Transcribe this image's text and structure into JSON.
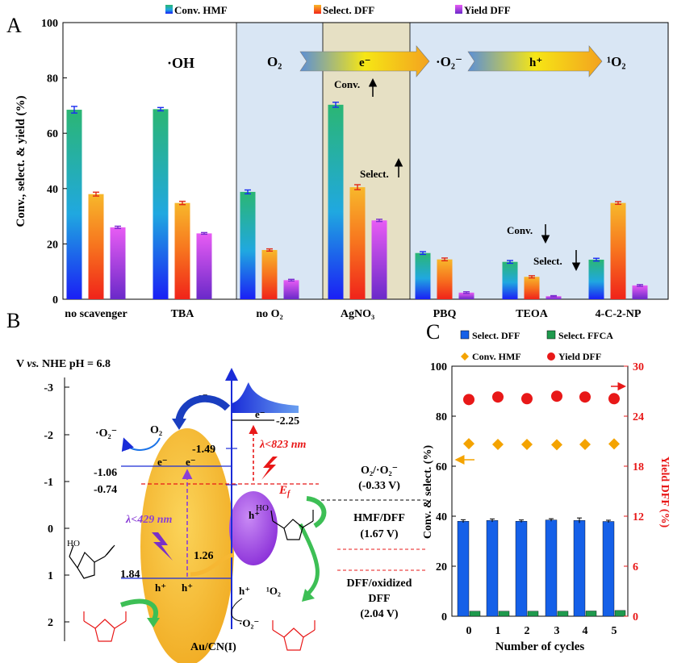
{
  "panels": {
    "A": {
      "label": "A"
    },
    "B": {
      "label": "B"
    },
    "C": {
      "label": "C"
    }
  },
  "chart_data": [
    {
      "panel": "A",
      "type": "bar",
      "ylabel": "Conv., select. & yield (%)",
      "ylim": [
        0,
        100
      ],
      "yticks": [
        0,
        20,
        40,
        60,
        80,
        100
      ],
      "categories": [
        "no scavenger",
        "TBA",
        "no O₂",
        "AgNO₃",
        "PBQ",
        "TEOA",
        "4-C-2-NP"
      ],
      "series": [
        {
          "name": "Conv. HMF",
          "values": [
            68.5,
            68.7,
            38.8,
            70.3,
            16.7,
            13.5,
            14.3
          ],
          "errors": [
            1.2,
            0.6,
            0.7,
            0.9,
            0.5,
            0.5,
            0.5
          ]
        },
        {
          "name": "Select. DFF",
          "values": [
            38.0,
            34.8,
            17.8,
            40.5,
            14.4,
            8.1,
            34.8
          ],
          "errors": [
            0.7,
            0.6,
            0.4,
            0.9,
            0.5,
            0.4,
            0.5
          ]
        },
        {
          "name": "Yield DFF",
          "values": [
            26.0,
            23.8,
            6.9,
            28.5,
            2.4,
            1.1,
            5.0
          ],
          "errors": [
            0.4,
            0.3,
            0.3,
            0.4,
            0.3,
            0.2,
            0.3
          ]
        }
      ],
      "legend_position": "top",
      "colors": {
        "conv_bar_top": "#2bb673",
        "conv_bar_bottom": "#1a2cf0",
        "sel_bar_top": "#f7b32b",
        "sel_bar_bottom": "#f03a17",
        "yield_bar_top": "#e05cf2",
        "yield_bar_bottom": "#7b2bd0",
        "bg_blue": "#d9e6f4",
        "bg_tan": "#e6e0c4",
        "error_conv": "#1a2cf0",
        "error_sel": "#e02a17",
        "error_yield": "#7b2bd0"
      },
      "annotations": {
        "oh": "·OH",
        "o2": "O₂",
        "electron": "e⁻",
        "superoxide": "·O₂⁻",
        "hole": "h⁺",
        "singlet": "¹O₂",
        "conv_up": "Conv.",
        "select_up": "Select.",
        "conv_down": "Conv.",
        "select_down": "Select."
      }
    },
    {
      "panel": "C",
      "type": "bar",
      "xlabel": "Number of cycles",
      "ylabel": "Conv. & select. (%)",
      "ylabel_right": "Yield DFF (%)",
      "ylim": [
        0,
        100
      ],
      "ylim_right": [
        0,
        30
      ],
      "yticks": [
        0,
        20,
        40,
        60,
        80,
        100
      ],
      "yticks_right": [
        0,
        6,
        12,
        18,
        24,
        30
      ],
      "categories": [
        "0",
        "1",
        "2",
        "3",
        "4",
        "5"
      ],
      "series": [
        {
          "name": "Select. DFF",
          "type": "bar",
          "values": [
            38.0,
            38.3,
            38.0,
            38.5,
            38.3,
            37.9
          ],
          "errors": [
            0.6,
            0.6,
            0.5,
            0.5,
            1.0,
            0.5
          ],
          "color": "#1560e8"
        },
        {
          "name": "Select. FFCA",
          "type": "bar",
          "values": [
            2.0,
            2.0,
            2.0,
            2.0,
            2.1,
            2.3
          ],
          "color": "#1f9a4d"
        },
        {
          "name": "Conv. HMF",
          "type": "scatter",
          "values": [
            69.0,
            68.7,
            68.7,
            68.6,
            68.7,
            68.9
          ],
          "color": "#f4a300"
        },
        {
          "name": "Yield DFF",
          "type": "scatter",
          "axis": "right",
          "values": [
            26.0,
            26.3,
            26.1,
            26.4,
            26.3,
            26.1
          ],
          "color": "#e81818"
        }
      ],
      "legend_position": "top"
    }
  ],
  "diagram_b": {
    "title": "V vs. NHE pH = 6.8",
    "title_parts": {
      "pre": "V ",
      "vs": "vs.",
      "post": " NHE pH = 6.8"
    },
    "yticks": [
      "-3",
      "-2",
      "-1",
      "0",
      "1",
      "2"
    ],
    "levels": {
      "au_cb": "-2.25",
      "cn_cb_low": "-1.49",
      "cn_cb_a": "-1.06",
      "cn_cb_b": "-0.74",
      "cn_vb_a": "1.26",
      "cn_vb_b": "1.84"
    },
    "texts": {
      "superoxide_left": "·O₂⁻",
      "o2_left": "O₂",
      "e_minus": "e⁻",
      "lambda_red": "λ<823 nm",
      "ef": "E",
      "ef_sub": "f",
      "lambda_purple": "λ<429 nm",
      "h_plus": "h⁺",
      "singlet": "¹O₂",
      "superoxide_bottom": "·O₂⁻",
      "catalyst": "Au/CN(I)",
      "ref1_line1": "O₂/·O₂⁻",
      "ref1_line2": "(-0.33 V)",
      "ref2_line1": "HMF/DFF",
      "ref2_line2": "(1.67 V)",
      "ref3_line1": "DFF/oxidized",
      "ref3_line2": "DFF",
      "ref3_line3": "(2.04 V)",
      "oh_label": "HO"
    },
    "colors": {
      "ellipse_fill": "#f6b733",
      "au_fill": "#a54ae0",
      "red": "#e81818",
      "purple": "#8a3fd6",
      "axis_blue": "#1a2cd8",
      "green_arrow": "#3dbf55"
    }
  }
}
